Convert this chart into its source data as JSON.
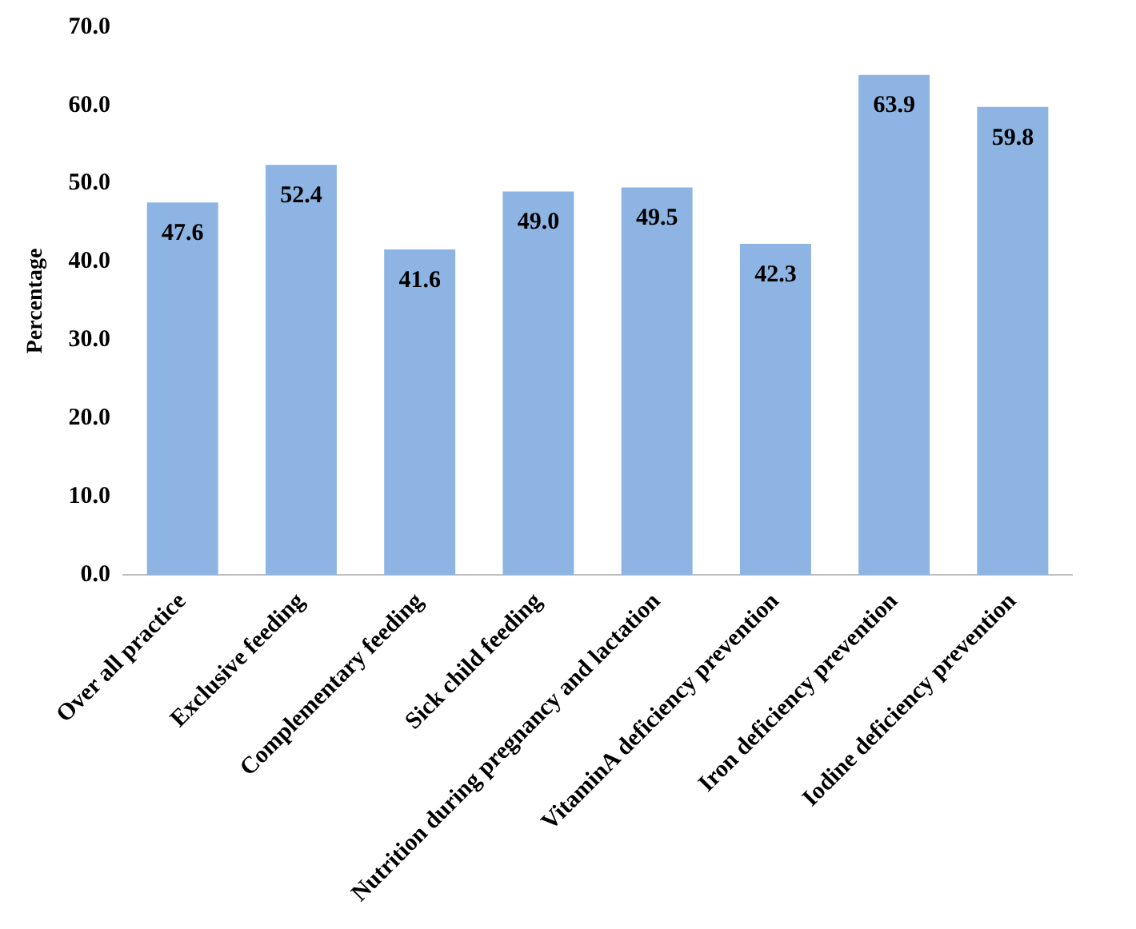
{
  "chart_data": {
    "type": "bar",
    "ylabel": "Percentage",
    "categories": [
      "Over all practice",
      "Exclusive feeding",
      "Complementary feeding",
      "Sick child feeding",
      "Nutrition during pregnancy and lactation",
      "VitaminA deficiency prevention",
      "Iron deficiency prevention",
      "Iodine deficiency prevention"
    ],
    "values": [
      47.6,
      52.4,
      41.6,
      49.0,
      49.5,
      42.3,
      63.9,
      59.8
    ],
    "value_labels": [
      "47.6",
      "52.4",
      "41.6",
      "49.0",
      "49.5",
      "42.3",
      "63.9",
      "59.8"
    ],
    "color": "#8db4e2",
    "ylim": [
      0,
      70
    ],
    "yticks": [
      {
        "value": 0,
        "label": "0.0"
      },
      {
        "value": 10,
        "label": "10.0"
      },
      {
        "value": 20,
        "label": "20.0"
      },
      {
        "value": 30,
        "label": "30.0"
      },
      {
        "value": 40,
        "label": "40.0"
      },
      {
        "value": 50,
        "label": "50.0"
      },
      {
        "value": 60,
        "label": "60.0"
      },
      {
        "value": 70,
        "label": "70.0"
      }
    ],
    "grid": false,
    "legend": false
  }
}
